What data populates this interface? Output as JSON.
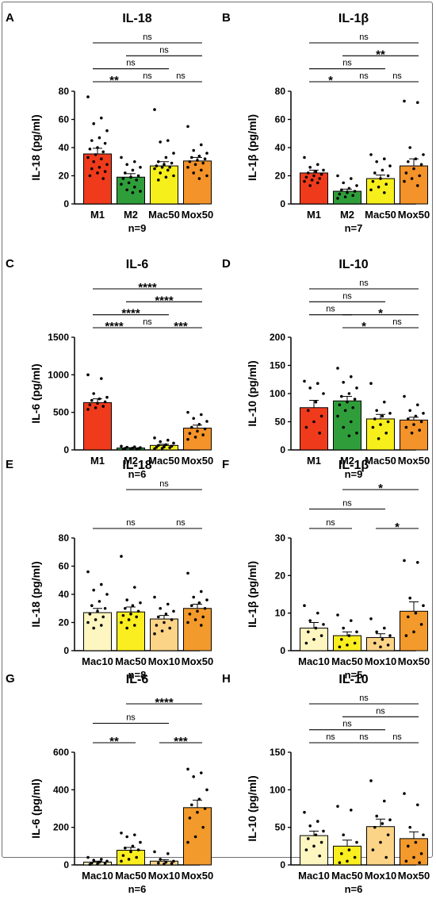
{
  "chart_data": [
    {
      "panel": "A",
      "title": "IL-18",
      "type": "bar",
      "ylabel": "IL-18 (pg/ml)",
      "n_label": "n=9",
      "categories": [
        "M1",
        "M2",
        "Mac50",
        "Mox50"
      ],
      "values": [
        35.5,
        19,
        27,
        30.5
      ],
      "errors": [
        4,
        2.5,
        3,
        2.5
      ],
      "colors": [
        "#ef3b1c",
        "#2f9e3a",
        "#f7ef1c",
        "#f3932a"
      ],
      "ylim": [
        0,
        80
      ],
      "yticks": [
        0,
        20,
        40,
        60,
        80
      ],
      "points": [
        [
          76,
          61,
          57,
          52,
          47,
          45,
          43,
          40,
          39,
          37,
          35,
          33,
          32,
          30,
          28,
          26,
          25,
          23,
          22,
          20,
          18
        ],
        [
          33,
          30,
          28,
          26,
          24,
          22,
          20,
          19,
          18,
          17,
          15,
          14,
          12,
          10,
          9,
          8
        ],
        [
          67,
          45,
          44,
          36,
          33,
          30,
          29,
          28,
          27,
          26,
          26,
          25,
          24,
          22,
          20,
          19,
          17
        ],
        [
          55,
          42,
          38,
          36,
          34,
          33,
          32,
          31,
          30,
          29,
          28,
          26,
          24,
          22,
          20,
          18
        ]
      ],
      "comparisons": [
        {
          "from": 0,
          "to": 3,
          "label": "ns"
        },
        {
          "from": 1,
          "to": 3,
          "label": "ns"
        },
        {
          "from": 0,
          "to": 2,
          "label": "ns"
        },
        {
          "from": 0,
          "to": 1,
          "label": "**"
        },
        {
          "from": 1,
          "to": 2,
          "label": "ns"
        },
        {
          "from": 2,
          "to": 3,
          "label": "ns"
        }
      ]
    },
    {
      "panel": "B",
      "title": "IL-1β",
      "type": "bar",
      "ylabel": "IL-1β (pg/ml)",
      "n_label": "n=7",
      "categories": [
        "M1",
        "M2",
        "Mac50",
        "Mox50"
      ],
      "values": [
        22,
        9,
        18,
        27
      ],
      "errors": [
        2,
        1.5,
        2.5,
        5
      ],
      "colors": [
        "#ef3b1c",
        "#2f9e3a",
        "#f7ef1c",
        "#f3932a"
      ],
      "ylim": [
        0,
        80
      ],
      "yticks": [
        0,
        20,
        40,
        60,
        80
      ],
      "points": [
        [
          33,
          28,
          26,
          24,
          23,
          22,
          21,
          20,
          19,
          18,
          17,
          16,
          15,
          13
        ],
        [
          20,
          18,
          15,
          13,
          11,
          10,
          9,
          8,
          7,
          6,
          5,
          4
        ],
        [
          35,
          32,
          30,
          27,
          24,
          22,
          20,
          18,
          16,
          14,
          12,
          10,
          8
        ],
        [
          73,
          72,
          40,
          35,
          32,
          30,
          28,
          25,
          22,
          20,
          18,
          16,
          13
        ]
      ],
      "comparisons": [
        {
          "from": 0,
          "to": 3,
          "label": "ns"
        },
        {
          "from": 1,
          "to": 3,
          "label": "**"
        },
        {
          "from": 0,
          "to": 2,
          "label": "ns"
        },
        {
          "from": 0,
          "to": 1,
          "label": "*"
        },
        {
          "from": 1,
          "to": 2,
          "label": "ns"
        },
        {
          "from": 2,
          "to": 3,
          "label": "ns"
        }
      ]
    },
    {
      "panel": "C",
      "title": "IL-6",
      "type": "bar",
      "ylabel": "IL-6 (pg/ml)",
      "n_label": "n=6",
      "categories": [
        "M1",
        "M2",
        "Mac50",
        "Mox50"
      ],
      "values": [
        630,
        25,
        60,
        290
      ],
      "errors": [
        50,
        5,
        15,
        40
      ],
      "colors": [
        "#ef3b1c",
        "#2f9e3a",
        "#f7ef1c",
        "#f3932a"
      ],
      "ylim": [
        0,
        1500
      ],
      "yticks": [
        0,
        500,
        1000,
        1500
      ],
      "points": [
        [
          1000,
          950,
          750,
          700,
          680,
          660,
          640,
          620,
          600,
          580,
          560,
          540
        ],
        [
          50,
          40,
          35,
          30,
          25,
          20,
          18,
          15,
          12,
          10
        ],
        [
          160,
          130,
          110,
          90,
          70,
          60,
          50,
          40,
          35,
          30,
          20,
          15
        ],
        [
          500,
          470,
          420,
          380,
          340,
          300,
          280,
          250,
          220,
          200,
          170,
          140
        ]
      ],
      "comparisons": [
        {
          "from": 0,
          "to": 3,
          "label": "****"
        },
        {
          "from": 1,
          "to": 3,
          "label": "****"
        },
        {
          "from": 0,
          "to": 2,
          "label": "****"
        },
        {
          "from": 0,
          "to": 1,
          "label": "****"
        },
        {
          "from": 1,
          "to": 2,
          "label": "ns"
        },
        {
          "from": 2,
          "to": 3,
          "label": "***"
        }
      ]
    },
    {
      "panel": "D",
      "title": "IL-10",
      "type": "bar",
      "ylabel": "IL-10 (pg/ml)",
      "n_label": "n=9",
      "categories": [
        "M1",
        "M2",
        "Mac50",
        "Mox50"
      ],
      "values": [
        75,
        87,
        55,
        53
      ],
      "errors": [
        13,
        8,
        8,
        5
      ],
      "colors": [
        "#ef3b1c",
        "#2f9e3a",
        "#f7ef1c",
        "#f3932a"
      ],
      "ylim": [
        0,
        200
      ],
      "yticks": [
        0,
        50,
        100,
        150,
        200
      ],
      "points": [
        [
          122,
          118,
          110,
          100,
          85,
          70,
          60,
          50,
          40,
          30
        ],
        [
          145,
          130,
          120,
          110,
          100,
          95,
          90,
          85,
          80,
          75,
          70,
          60,
          50,
          40,
          30,
          25
        ],
        [
          118,
          85,
          70,
          65,
          60,
          55,
          50,
          45,
          40,
          30,
          20
        ],
        [
          95,
          80,
          70,
          65,
          60,
          55,
          50,
          45,
          40,
          35,
          30
        ]
      ],
      "comparisons": [
        {
          "from": 0,
          "to": 3,
          "label": "ns"
        },
        {
          "from": 0,
          "to": 2,
          "label": "ns"
        },
        {
          "from": 1,
          "to": 3,
          "label": "*"
        },
        {
          "from": 0,
          "to": 1,
          "label": "ns"
        },
        {
          "from": 1,
          "to": 2,
          "label": "*"
        },
        {
          "from": 2,
          "to": 3,
          "label": "ns"
        }
      ]
    },
    {
      "panel": "E",
      "title": "IL-18",
      "type": "bar",
      "ylabel": "IL-18 (pg/ml)",
      "n_label": "n=8",
      "categories": [
        "Mac10",
        "Mac50",
        "Mox10",
        "Mox50"
      ],
      "values": [
        27,
        27.5,
        22.5,
        30
      ],
      "errors": [
        3,
        3.5,
        2.5,
        3
      ],
      "colors": [
        "#fdf6c0",
        "#faee20",
        "#fbd487",
        "#f39a2c"
      ],
      "ylim": [
        0,
        80
      ],
      "yticks": [
        0,
        20,
        40,
        60,
        80
      ],
      "points": [
        [
          56,
          47,
          43,
          40,
          35,
          32,
          30,
          28,
          26,
          24,
          22,
          20,
          18,
          16
        ],
        [
          67,
          45,
          36,
          34,
          32,
          30,
          28,
          26,
          25,
          24,
          22,
          20,
          18,
          16
        ],
        [
          38,
          33,
          30,
          28,
          26,
          24,
          22,
          20,
          18,
          16,
          14,
          12
        ],
        [
          55,
          42,
          38,
          36,
          34,
          32,
          30,
          28,
          26,
          24,
          22,
          20,
          18
        ]
      ],
      "comparisons": [
        {
          "from": 1,
          "to": 3,
          "label": "ns"
        },
        {
          "from": 0,
          "to": 2,
          "label": "ns"
        },
        {
          "from": 2,
          "to": 3,
          "label": "ns"
        }
      ]
    },
    {
      "panel": "F",
      "title": "IL-1β",
      "type": "bar",
      "ylabel": "IL-1β (pg/ml)",
      "n_label": "n=5",
      "categories": [
        "Mac10",
        "Mac50",
        "Mox10",
        "Mox50"
      ],
      "values": [
        6,
        4,
        3.5,
        10.5
      ],
      "errors": [
        1.5,
        1,
        1,
        2.5
      ],
      "colors": [
        "#fdf6c0",
        "#faee20",
        "#fbd487",
        "#f39a2c"
      ],
      "ylim": [
        0,
        30
      ],
      "yticks": [
        0,
        10,
        20,
        30
      ],
      "points": [
        [
          12,
          10,
          8,
          7,
          6,
          5,
          4,
          3,
          2
        ],
        [
          9.5,
          8,
          6,
          5,
          4,
          3,
          2,
          1.5,
          1
        ],
        [
          8.5,
          6,
          5,
          4,
          3,
          2,
          1.5,
          1
        ],
        [
          24,
          23.5,
          14,
          12,
          10,
          9,
          7,
          5,
          4
        ]
      ],
      "comparisons": [
        {
          "from": 1,
          "to": 3,
          "label": "*"
        },
        {
          "from": 0,
          "to": 2,
          "label": "ns"
        },
        {
          "from": 0,
          "to": 1,
          "label": "ns"
        },
        {
          "from": 2,
          "to": 3,
          "label": "*"
        }
      ]
    },
    {
      "panel": "G",
      "title": "IL-6",
      "type": "bar",
      "ylabel": "IL-6 (pg/ml)",
      "n_label": "n=6",
      "categories": [
        "Mac10",
        "Mac50",
        "Mox10",
        "Mox50"
      ],
      "values": [
        15,
        78,
        20,
        305
      ],
      "errors": [
        5,
        15,
        8,
        40
      ],
      "colors": [
        "#fdf6c0",
        "#faee20",
        "#fbd487",
        "#f39a2c"
      ],
      "ylim": [
        0,
        600
      ],
      "yticks": [
        0,
        200,
        400,
        600
      ],
      "points": [
        [
          40,
          30,
          25,
          20,
          15,
          10,
          8,
          5,
          3
        ],
        [
          170,
          160,
          150,
          120,
          100,
          90,
          80,
          70,
          50,
          40,
          30,
          20
        ],
        [
          70,
          60,
          30,
          20,
          15,
          10,
          8,
          5
        ],
        [
          510,
          490,
          470,
          400,
          350,
          320,
          300,
          280,
          250,
          200,
          150,
          120
        ]
      ],
      "comparisons": [
        {
          "from": 1,
          "to": 3,
          "label": "****"
        },
        {
          "from": 0,
          "to": 2,
          "label": "ns"
        },
        {
          "from": 0,
          "to": 1,
          "label": "**"
        },
        {
          "from": 2,
          "to": 3,
          "label": "***"
        }
      ]
    },
    {
      "panel": "H",
      "title": "IL-10",
      "type": "bar",
      "ylabel": "IL-10 (pg/ml)",
      "n_label": "n=6",
      "categories": [
        "Mac10",
        "Mac50",
        "Mox10",
        "Mox50"
      ],
      "values": [
        39,
        25,
        51,
        35
      ],
      "errors": [
        6,
        8,
        10,
        9
      ],
      "colors": [
        "#fdf6c0",
        "#faee20",
        "#fbd487",
        "#f39a2c"
      ],
      "ylim": [
        0,
        150
      ],
      "yticks": [
        0,
        50,
        100,
        150
      ],
      "points": [
        [
          70,
          58,
          52,
          45,
          40,
          35,
          30,
          25,
          20,
          12
        ],
        [
          78,
          73,
          40,
          30,
          20,
          15,
          10,
          5,
          3
        ],
        [
          112,
          85,
          65,
          60,
          55,
          50,
          40,
          30,
          20,
          10
        ],
        [
          95,
          80,
          50,
          40,
          30,
          25,
          15,
          10,
          5,
          3
        ]
      ],
      "comparisons": [
        {
          "from": 0,
          "to": 3,
          "label": "ns"
        },
        {
          "from": 1,
          "to": 3,
          "label": "ns"
        },
        {
          "from": 0,
          "to": 2,
          "label": "ns"
        },
        {
          "from": 0,
          "to": 1,
          "label": "ns"
        },
        {
          "from": 1,
          "to": 2,
          "label": "ns"
        },
        {
          "from": 2,
          "to": 3,
          "label": "ns"
        }
      ]
    }
  ]
}
